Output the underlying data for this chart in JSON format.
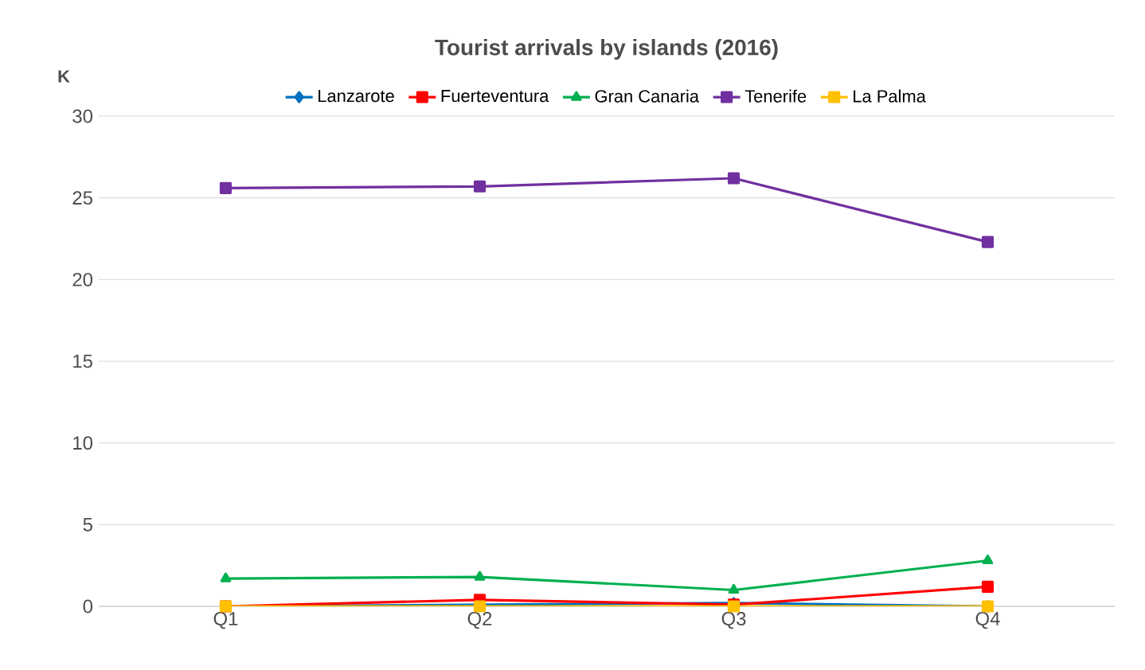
{
  "chart_data": {
    "type": "line",
    "title": "Tourist arrivals by islands (2016)",
    "ylabel": "K",
    "categories": [
      "Q1",
      "Q2",
      "Q3",
      "Q4"
    ],
    "series": [
      {
        "name": "Lanzarote",
        "color": "#0070c0",
        "marker": "diamond",
        "values": [
          0.0,
          0.1,
          0.2,
          0.0
        ]
      },
      {
        "name": "Fuerteventura",
        "color": "#ff0000",
        "marker": "square",
        "values": [
          0.0,
          0.4,
          0.1,
          1.2
        ]
      },
      {
        "name": "Gran Canaria",
        "color": "#00b050",
        "marker": "triangle",
        "values": [
          1.7,
          1.8,
          1.0,
          2.8
        ]
      },
      {
        "name": "Tenerife",
        "color": "#7030a0",
        "marker": "square",
        "values": [
          25.6,
          25.7,
          26.2,
          22.3
        ]
      },
      {
        "name": "La Palma",
        "color": "#ffc000",
        "marker": "square",
        "values": [
          0.0,
          0.0,
          0.0,
          0.0
        ]
      }
    ],
    "ylim": [
      0,
      30
    ],
    "yticks": [
      0,
      5,
      10,
      15,
      20,
      25,
      30
    ],
    "grid": "y",
    "legend": "top",
    "line_style": "solid"
  }
}
